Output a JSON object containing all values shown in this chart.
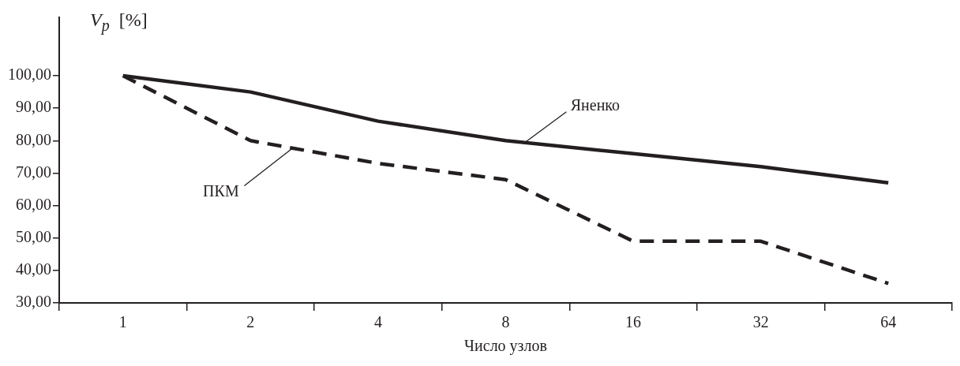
{
  "chart_data": {
    "type": "line",
    "xlabel": "Число узлов",
    "ylabel": "V$_{p}$  [%]",
    "categories": [
      "1",
      "2",
      "4",
      "8",
      "16",
      "32",
      "64"
    ],
    "series": [
      {
        "name": "Яненко",
        "color": "#231f20",
        "line_style": "solid",
        "values": [
          100,
          95,
          86,
          80,
          76,
          72,
          67
        ]
      },
      {
        "name": "ПКМ",
        "color": "#231f20",
        "line_style": "dashed",
        "values": [
          100,
          80,
          73,
          68,
          49,
          49,
          36
        ]
      }
    ],
    "ylim": [
      30,
      118
    ],
    "yticks": [
      {
        "value": 30,
        "label": "30,00"
      },
      {
        "value": 40,
        "label": "40,00"
      },
      {
        "value": 50,
        "label": "50,00"
      },
      {
        "value": 60,
        "label": "60,00"
      },
      {
        "value": 70,
        "label": "70,00"
      },
      {
        "value": 80,
        "label": "80,00"
      },
      {
        "value": 90,
        "label": "90,00"
      },
      {
        "value": 100,
        "label": "100,00"
      }
    ],
    "grid": false,
    "legend": false,
    "marker": "none"
  }
}
